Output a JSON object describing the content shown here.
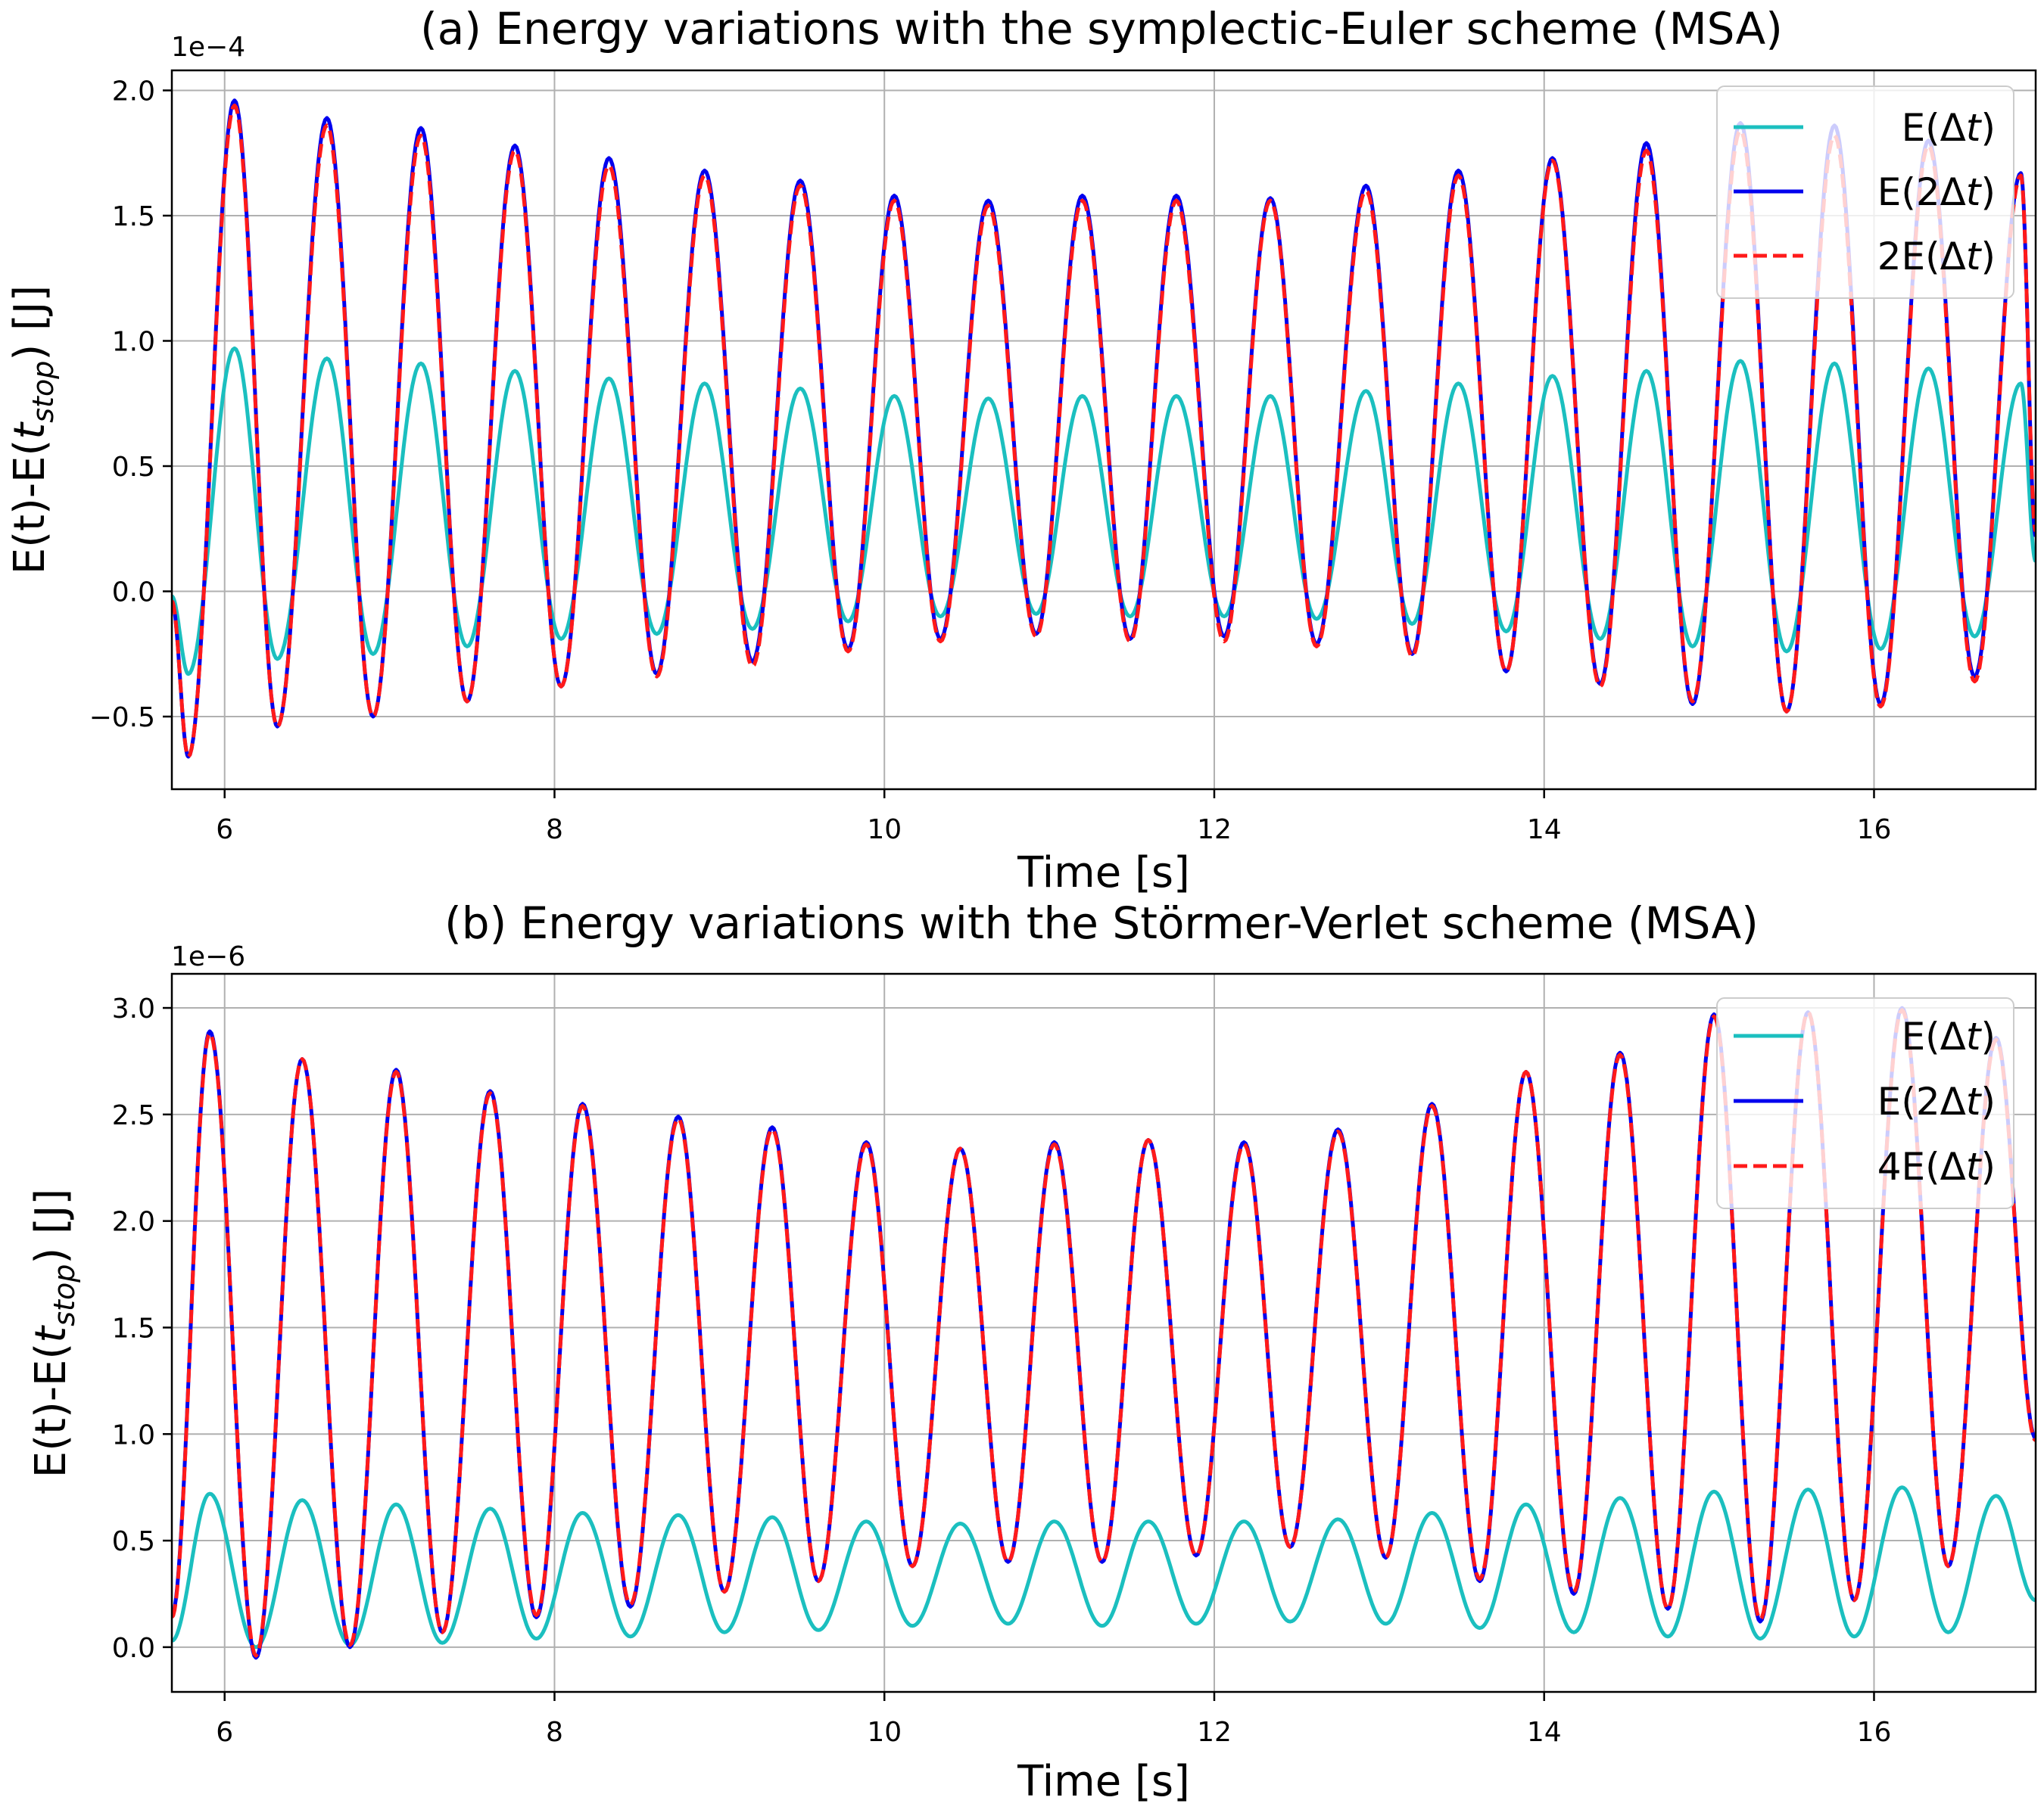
{
  "chart_data": [
    {
      "id": "panel-a",
      "type": "line",
      "title": "(a) Energy variations with the symplectic-Euler scheme (MSA)",
      "xlabel": "Time [s]",
      "ylabel": "E(t)-E(t_stop) [J]",
      "ylabel_main": "E(t)-E(",
      "ylabel_italic": "t",
      "ylabel_sub": "stop",
      "ylabel_end": ") [J]",
      "offset_text": "1e−4",
      "scale": 0.0001,
      "xlim": [
        5.68,
        16.98
      ],
      "ylim": [
        -0.79,
        2.08
      ],
      "xticks": [
        6,
        8,
        10,
        12,
        14,
        16
      ],
      "xtick_labels": [
        "6",
        "8",
        "10",
        "12",
        "14",
        "16"
      ],
      "yticks": [
        -0.5,
        0.0,
        0.5,
        1.0,
        1.5,
        2.0
      ],
      "ytick_labels": [
        "−0.5",
        "0.0",
        "0.5",
        "1.0",
        "1.5",
        "2.0"
      ],
      "grid": true,
      "legend_position": "top-right",
      "period": 0.575,
      "x_start": 5.68,
      "x_end": 16.98,
      "series": [
        {
          "name": "E(Δt)",
          "legend_main": "E(Δ",
          "legend_italic": "t",
          "legend_end": ")",
          "color": "#1bbfbf",
          "dash": "none",
          "x": [
            5.68,
            5.78,
            6.06,
            6.32,
            6.62,
            6.9,
            7.19,
            7.47,
            7.76,
            8.04,
            8.33,
            8.62,
            8.91,
            9.2,
            9.49,
            9.78,
            10.06,
            10.34,
            10.63,
            10.92,
            11.2,
            11.49,
            11.77,
            12.06,
            12.34,
            12.62,
            12.92,
            13.2,
            13.48,
            13.77,
            14.05,
            14.34,
            14.62,
            14.9,
            15.19,
            15.47,
            15.76,
            16.04,
            16.33,
            16.61,
            16.89,
            16.98
          ],
          "y": [
            -0.02,
            -0.33,
            0.97,
            -0.27,
            0.93,
            -0.25,
            0.91,
            -0.22,
            0.88,
            -0.19,
            0.85,
            -0.17,
            0.83,
            -0.15,
            0.81,
            -0.12,
            0.78,
            -0.1,
            0.77,
            -0.09,
            0.78,
            -0.1,
            0.78,
            -0.1,
            0.78,
            -0.11,
            0.8,
            -0.13,
            0.83,
            -0.16,
            0.86,
            -0.19,
            0.88,
            -0.22,
            0.92,
            -0.24,
            0.91,
            -0.23,
            0.89,
            -0.18,
            0.83,
            0.12
          ]
        },
        {
          "name": "E(2Δt)",
          "legend_main": "E(2Δ",
          "legend_italic": "t",
          "legend_end": ")",
          "color": "#0000ee",
          "dash": "none",
          "x": [
            5.68,
            5.78,
            6.06,
            6.32,
            6.62,
            6.9,
            7.19,
            7.47,
            7.76,
            8.04,
            8.33,
            8.62,
            8.91,
            9.2,
            9.49,
            9.78,
            10.06,
            10.34,
            10.63,
            10.92,
            11.2,
            11.49,
            11.77,
            12.06,
            12.34,
            12.62,
            12.92,
            13.2,
            13.48,
            13.77,
            14.05,
            14.34,
            14.62,
            14.9,
            15.19,
            15.47,
            15.76,
            16.04,
            16.33,
            16.61,
            16.89,
            16.98
          ],
          "y": [
            -0.04,
            -0.66,
            1.96,
            -0.54,
            1.89,
            -0.5,
            1.85,
            -0.44,
            1.78,
            -0.38,
            1.73,
            -0.33,
            1.68,
            -0.28,
            1.64,
            -0.23,
            1.58,
            -0.19,
            1.56,
            -0.17,
            1.58,
            -0.19,
            1.58,
            -0.18,
            1.57,
            -0.21,
            1.62,
            -0.25,
            1.68,
            -0.32,
            1.73,
            -0.37,
            1.79,
            -0.45,
            1.87,
            -0.48,
            1.86,
            -0.45,
            1.8,
            -0.34,
            1.67,
            0.22
          ]
        },
        {
          "name": "2E(Δt)",
          "legend_main": "2E(Δ",
          "legend_italic": "t",
          "legend_end": ")",
          "color": "#ff1a1a",
          "dash": "dashed",
          "x": [
            5.68,
            5.78,
            6.06,
            6.32,
            6.62,
            6.9,
            7.19,
            7.47,
            7.76,
            8.04,
            8.33,
            8.62,
            8.91,
            9.2,
            9.49,
            9.78,
            10.06,
            10.34,
            10.63,
            10.92,
            11.2,
            11.49,
            11.77,
            12.06,
            12.34,
            12.62,
            12.92,
            13.2,
            13.48,
            13.77,
            14.05,
            14.34,
            14.62,
            14.9,
            15.19,
            15.47,
            15.76,
            16.04,
            16.33,
            16.61,
            16.89,
            16.98
          ],
          "y": [
            -0.04,
            -0.66,
            1.94,
            -0.54,
            1.86,
            -0.5,
            1.82,
            -0.44,
            1.76,
            -0.38,
            1.7,
            -0.34,
            1.66,
            -0.3,
            1.62,
            -0.24,
            1.56,
            -0.2,
            1.54,
            -0.18,
            1.56,
            -0.2,
            1.56,
            -0.2,
            1.56,
            -0.22,
            1.6,
            -0.26,
            1.66,
            -0.32,
            1.72,
            -0.38,
            1.76,
            -0.44,
            1.84,
            -0.48,
            1.82,
            -0.46,
            1.78,
            -0.36,
            1.66,
            0.24
          ]
        }
      ]
    },
    {
      "id": "panel-b",
      "type": "line",
      "title": "(b) Energy variations with the Störmer-Verlet scheme (MSA)",
      "xlabel": "Time [s]",
      "ylabel": "E(t)-E(t_stop) [J]",
      "ylabel_main": "E(t)-E(",
      "ylabel_italic": "t",
      "ylabel_sub": "stop",
      "ylabel_end": ") [J]",
      "offset_text": "1e−6",
      "scale": 1e-06,
      "xlim": [
        5.68,
        16.98
      ],
      "ylim": [
        -0.21,
        3.16
      ],
      "xticks": [
        6,
        8,
        10,
        12,
        14,
        16
      ],
      "xtick_labels": [
        "6",
        "8",
        "10",
        "12",
        "14",
        "16"
      ],
      "yticks": [
        0.0,
        0.5,
        1.0,
        1.5,
        2.0,
        2.5,
        3.0
      ],
      "ytick_labels": [
        "0.0",
        "0.5",
        "1.0",
        "1.5",
        "2.0",
        "2.5",
        "3.0"
      ],
      "grid": true,
      "legend_position": "top-right",
      "period": 0.575,
      "x_start": 5.68,
      "x_end": 16.98,
      "series": [
        {
          "name": "E(Δt)",
          "legend_main": "E(Δ",
          "legend_italic": "t",
          "legend_end": ")",
          "color": "#1bbfbf",
          "dash": "none",
          "x": [
            5.68,
            5.91,
            6.19,
            6.47,
            6.76,
            7.04,
            7.32,
            7.61,
            7.89,
            8.17,
            8.46,
            8.75,
            9.03,
            9.32,
            9.6,
            9.89,
            10.17,
            10.46,
            10.75,
            11.03,
            11.32,
            11.6,
            11.89,
            12.18,
            12.46,
            12.75,
            13.04,
            13.32,
            13.61,
            13.89,
            14.18,
            14.46,
            14.75,
            15.03,
            15.31,
            15.6,
            15.88,
            16.17,
            16.45,
            16.74,
            16.98
          ],
          "y": [
            0.03,
            0.72,
            0.0,
            0.69,
            0.01,
            0.67,
            0.02,
            0.65,
            0.04,
            0.63,
            0.05,
            0.62,
            0.07,
            0.61,
            0.08,
            0.59,
            0.1,
            0.58,
            0.11,
            0.59,
            0.1,
            0.59,
            0.11,
            0.59,
            0.12,
            0.6,
            0.11,
            0.63,
            0.09,
            0.67,
            0.07,
            0.7,
            0.05,
            0.73,
            0.04,
            0.74,
            0.05,
            0.75,
            0.07,
            0.71,
            0.22
          ]
        },
        {
          "name": "E(2Δt)",
          "legend_main": "E(2Δ",
          "legend_italic": "t",
          "legend_end": ")",
          "color": "#0000ee",
          "dash": "none",
          "x": [
            5.68,
            5.91,
            6.19,
            6.47,
            6.76,
            7.04,
            7.32,
            7.61,
            7.89,
            8.17,
            8.46,
            8.75,
            9.03,
            9.32,
            9.6,
            9.89,
            10.17,
            10.46,
            10.75,
            11.03,
            11.32,
            11.6,
            11.89,
            12.18,
            12.46,
            12.75,
            13.04,
            13.32,
            13.61,
            13.89,
            14.18,
            14.46,
            14.75,
            15.03,
            15.31,
            15.6,
            15.88,
            16.17,
            16.45,
            16.74,
            16.98
          ],
          "y": [
            0.15,
            2.89,
            -0.05,
            2.76,
            0.0,
            2.71,
            0.07,
            2.61,
            0.14,
            2.55,
            0.19,
            2.49,
            0.26,
            2.44,
            0.31,
            2.37,
            0.38,
            2.34,
            0.4,
            2.37,
            0.4,
            2.38,
            0.43,
            2.37,
            0.47,
            2.43,
            0.42,
            2.55,
            0.31,
            2.7,
            0.25,
            2.79,
            0.18,
            2.97,
            0.12,
            2.98,
            0.22,
            3.0,
            0.38,
            2.86,
            0.98
          ]
        },
        {
          "name": "4E(Δt)",
          "legend_main": "4E(Δ",
          "legend_italic": "t",
          "legend_end": ")",
          "color": "#ff1a1a",
          "dash": "dashed",
          "x": [
            5.68,
            5.91,
            6.19,
            6.47,
            6.76,
            7.04,
            7.32,
            7.61,
            7.89,
            8.17,
            8.46,
            8.75,
            9.03,
            9.32,
            9.6,
            9.89,
            10.17,
            10.46,
            10.75,
            11.03,
            11.32,
            11.6,
            11.89,
            12.18,
            12.46,
            12.75,
            13.04,
            13.32,
            13.61,
            13.89,
            14.18,
            14.46,
            14.75,
            15.03,
            15.31,
            15.6,
            15.88,
            16.17,
            16.45,
            16.74,
            16.98
          ],
          "y": [
            0.14,
            2.88,
            -0.04,
            2.76,
            0.01,
            2.7,
            0.07,
            2.6,
            0.15,
            2.54,
            0.2,
            2.48,
            0.26,
            2.43,
            0.31,
            2.36,
            0.38,
            2.34,
            0.4,
            2.36,
            0.4,
            2.38,
            0.43,
            2.36,
            0.47,
            2.42,
            0.42,
            2.54,
            0.32,
            2.7,
            0.26,
            2.78,
            0.18,
            2.96,
            0.13,
            2.98,
            0.22,
            2.99,
            0.38,
            2.85,
            0.97
          ]
        }
      ]
    }
  ]
}
